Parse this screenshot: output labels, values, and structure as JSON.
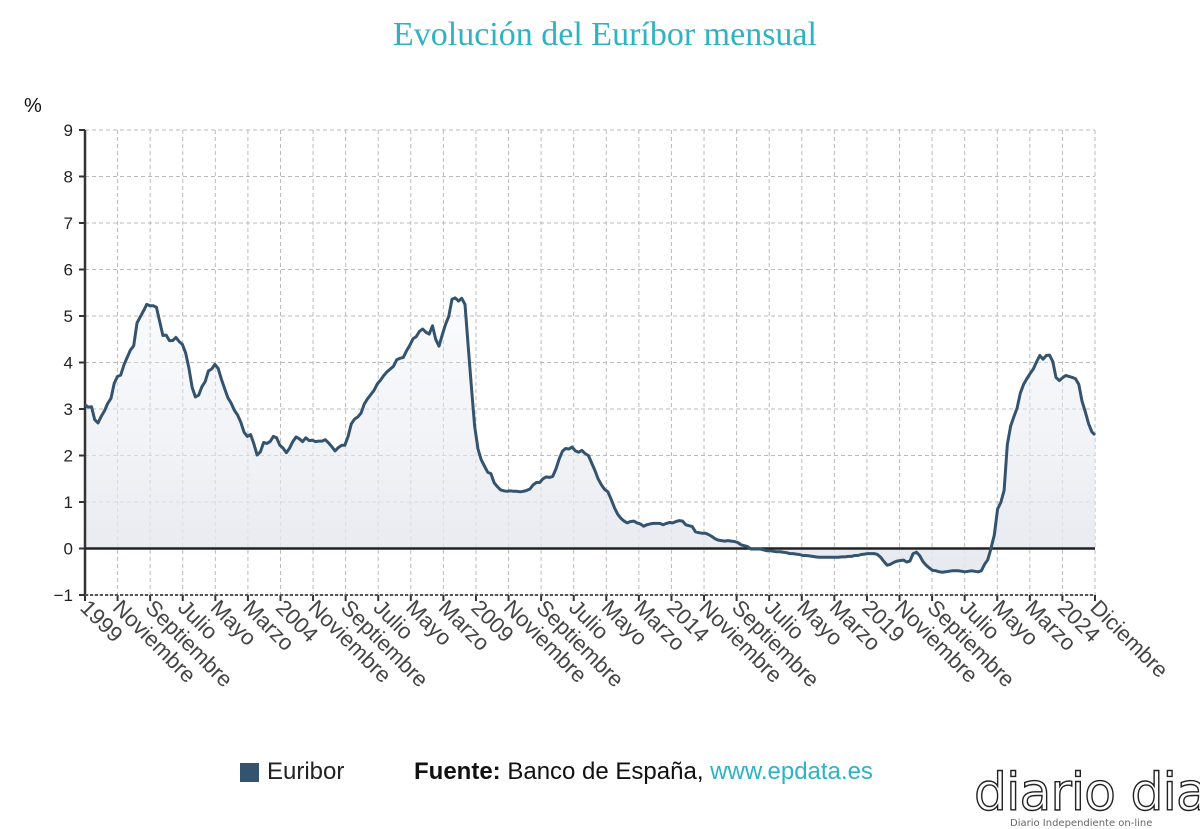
{
  "chart_data": {
    "type": "area",
    "title": "Evolución del Euríbor mensual",
    "ylabel": "%",
    "ylim": [
      -1,
      9
    ],
    "yticks": [
      "9",
      "8",
      "7",
      "6",
      "5",
      "4",
      "3",
      "2",
      "1",
      "0",
      "-1"
    ],
    "xtick_labels": [
      "1999",
      "Noviembre",
      "Septiembre",
      "Julio",
      "Mayo",
      "Marzo",
      "2004",
      "Noviembre",
      "Septiembre",
      "Julio",
      "Mayo",
      "Marzo",
      "2009",
      "Noviembre",
      "Septiembre",
      "Julio",
      "Mayo",
      "Marzo",
      "2014",
      "Noviembre",
      "Septiembre",
      "Julio",
      "Mayo",
      "Marzo",
      "2019",
      "Noviembre",
      "Septiembre",
      "Julio",
      "Mayo",
      "Marzo",
      "2024",
      "Diciembre"
    ],
    "grid": true,
    "legend_position": "bottom-left",
    "series": [
      {
        "name": "Euribor",
        "color": "#34536f",
        "monthly_values_by_year": {
          "1999": [
            3.09,
            3.04,
            3.05,
            2.77,
            2.7,
            2.84,
            2.96,
            3.12,
            3.23,
            3.55,
            3.7,
            3.73
          ],
          "2000": [
            3.95,
            4.11,
            4.27,
            4.36,
            4.85,
            4.98,
            5.11,
            5.25,
            5.22,
            5.22,
            5.19,
            4.88
          ],
          "2001": [
            4.58,
            4.59,
            4.47,
            4.47,
            4.54,
            4.45,
            4.39,
            4.2,
            3.88,
            3.46,
            3.26,
            3.3
          ],
          "2002": [
            3.48,
            3.59,
            3.82,
            3.86,
            3.96,
            3.87,
            3.64,
            3.44,
            3.24,
            3.13,
            2.97,
            2.87
          ],
          "2003": [
            2.71,
            2.5,
            2.41,
            2.45,
            2.25,
            2.01,
            2.08,
            2.28,
            2.26,
            2.3,
            2.41,
            2.38
          ],
          "2004": [
            2.22,
            2.16,
            2.06,
            2.16,
            2.3,
            2.4,
            2.36,
            2.3,
            2.38,
            2.32,
            2.33,
            2.3
          ],
          "2005": [
            2.31,
            2.31,
            2.34,
            2.27,
            2.19,
            2.1,
            2.17,
            2.22,
            2.22,
            2.41,
            2.68,
            2.78
          ],
          "2006": [
            2.83,
            2.91,
            3.11,
            3.22,
            3.31,
            3.4,
            3.54,
            3.62,
            3.72,
            3.8,
            3.86,
            3.92
          ],
          "2007": [
            4.06,
            4.09,
            4.11,
            4.25,
            4.37,
            4.51,
            4.56,
            4.67,
            4.72,
            4.65,
            4.61,
            4.79
          ],
          "2008": [
            4.5,
            4.35,
            4.59,
            4.82,
            4.99,
            5.36,
            5.39,
            5.32,
            5.38,
            5.25,
            4.35,
            3.45
          ],
          "2009": [
            2.62,
            2.14,
            1.91,
            1.77,
            1.64,
            1.61,
            1.41,
            1.33,
            1.26,
            1.24,
            1.23,
            1.24
          ],
          "2010": [
            1.23,
            1.23,
            1.22,
            1.23,
            1.25,
            1.28,
            1.37,
            1.42,
            1.42,
            1.5,
            1.54,
            1.53
          ],
          "2011": [
            1.55,
            1.71,
            1.92,
            2.09,
            2.15,
            2.14,
            2.18,
            2.1,
            2.07,
            2.11,
            2.04,
            2.0
          ],
          "2012": [
            1.84,
            1.68,
            1.5,
            1.37,
            1.27,
            1.22,
            1.06,
            0.88,
            0.74,
            0.65,
            0.59,
            0.55
          ],
          "2013": [
            0.58,
            0.59,
            0.55,
            0.53,
            0.48,
            0.51,
            0.53,
            0.54,
            0.54,
            0.54,
            0.51,
            0.54
          ],
          "2014": [
            0.56,
            0.55,
            0.58,
            0.6,
            0.59,
            0.51,
            0.49,
            0.47,
            0.36,
            0.34,
            0.33,
            0.33
          ],
          "2015": [
            0.3,
            0.26,
            0.21,
            0.18,
            0.17,
            0.16,
            0.17,
            0.16,
            0.15,
            0.13,
            0.08,
            0.06
          ],
          "2016": [
            0.04,
            -0.01,
            -0.01,
            -0.01,
            -0.01,
            -0.03,
            -0.05,
            -0.05,
            -0.06,
            -0.07,
            -0.07,
            -0.08
          ],
          "2017": [
            -0.09,
            -0.11,
            -0.11,
            -0.12,
            -0.13,
            -0.15,
            -0.15,
            -0.16,
            -0.17,
            -0.18,
            -0.19,
            -0.19
          ],
          "2018": [
            -0.19,
            -0.19,
            -0.19,
            -0.19,
            -0.19,
            -0.18,
            -0.18,
            -0.17,
            -0.17,
            -0.15,
            -0.15,
            -0.13
          ],
          "2019": [
            -0.12,
            -0.11,
            -0.11,
            -0.11,
            -0.13,
            -0.19,
            -0.28,
            -0.36,
            -0.34,
            -0.3,
            -0.27,
            -0.26
          ],
          "2020": [
            -0.25,
            -0.29,
            -0.27,
            -0.11,
            -0.08,
            -0.15,
            -0.28,
            -0.36,
            -0.42,
            -0.47,
            -0.48,
            -0.5
          ],
          "2021": [
            -0.51,
            -0.5,
            -0.49,
            -0.48,
            -0.48,
            -0.48,
            -0.49,
            -0.5,
            -0.49,
            -0.48,
            -0.49,
            -0.5
          ],
          "2022": [
            -0.48,
            -0.34,
            -0.24,
            0.01,
            0.29,
            0.85,
            0.99,
            1.25,
            2.23,
            2.63,
            2.83,
            3.02
          ],
          "2023": [
            3.34,
            3.53,
            3.65,
            3.76,
            3.86,
            4.01,
            4.15,
            4.07,
            4.15,
            4.16,
            4.02,
            3.68
          ],
          "2024": [
            3.61,
            3.67,
            3.72,
            3.7,
            3.68,
            3.65,
            3.53,
            3.17,
            2.94,
            2.69,
            2.51,
            2.44
          ]
        }
      }
    ]
  },
  "legend": {
    "label": "Euribor"
  },
  "source": {
    "prefix": "Fuente:",
    "text": " Banco de España, ",
    "url": "www.epdata.es"
  },
  "logo": {
    "text": "diario dia",
    "tagline": "Diario Independiente on-line"
  }
}
